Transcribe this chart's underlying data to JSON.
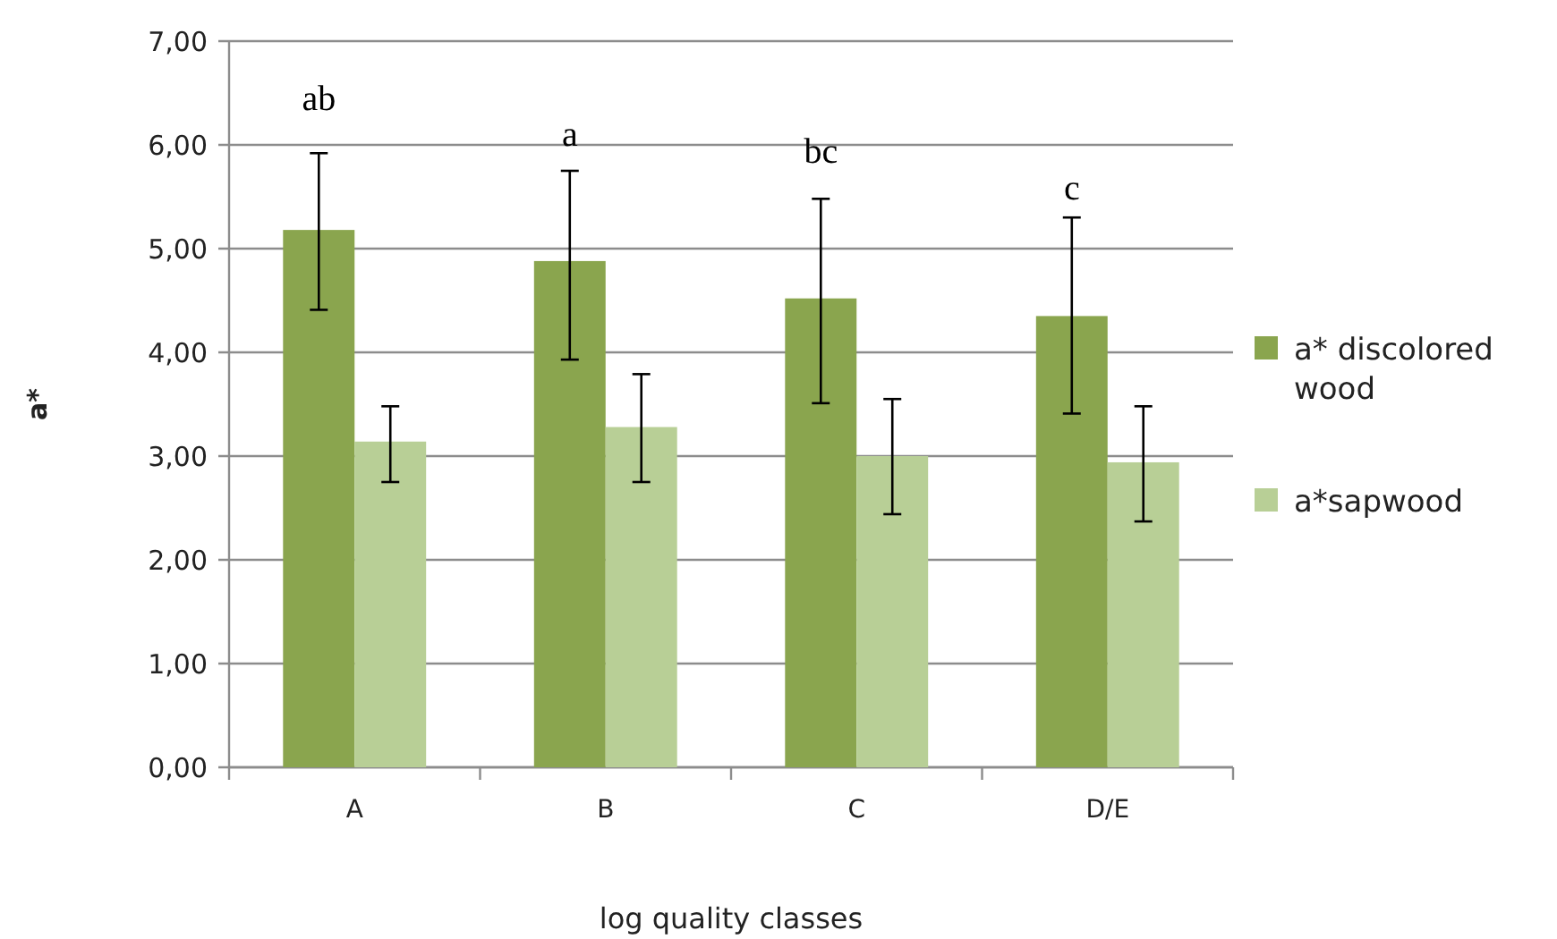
{
  "chart_data": {
    "type": "bar",
    "xlabel": "log quality classes",
    "ylabel": "a*",
    "categories": [
      "A",
      "B",
      "C",
      "D/E"
    ],
    "series": [
      {
        "name": "a* discolored wood",
        "color": "#8aa54e",
        "values": [
          5.18,
          4.88,
          4.52,
          4.35
        ],
        "errors": [
          [
            4.41,
            5.92
          ],
          [
            3.93,
            5.75
          ],
          [
            3.51,
            5.48
          ],
          [
            3.41,
            5.3
          ]
        ]
      },
      {
        "name": "a*sapwood",
        "color": "#b8cf96",
        "values": [
          3.14,
          3.28,
          3.0,
          2.94
        ],
        "errors": [
          [
            2.75,
            3.48
          ],
          [
            2.75,
            3.79
          ],
          [
            2.44,
            3.55
          ],
          [
            2.37,
            3.48
          ]
        ]
      }
    ],
    "ylim": [
      0,
      7
    ],
    "yticks": [
      {
        "value": 0,
        "label": "0,00"
      },
      {
        "value": 1,
        "label": "1,00"
      },
      {
        "value": 2,
        "label": "2,00"
      },
      {
        "value": 3,
        "label": "3,00"
      },
      {
        "value": 4,
        "label": "4,00"
      },
      {
        "value": 5,
        "label": "5,00"
      },
      {
        "value": 6,
        "label": "6,00"
      },
      {
        "value": 7,
        "label": "7,00"
      }
    ],
    "grid": "y",
    "legend": "right",
    "annotations": [
      "ab",
      "a",
      "bc",
      "c"
    ]
  }
}
